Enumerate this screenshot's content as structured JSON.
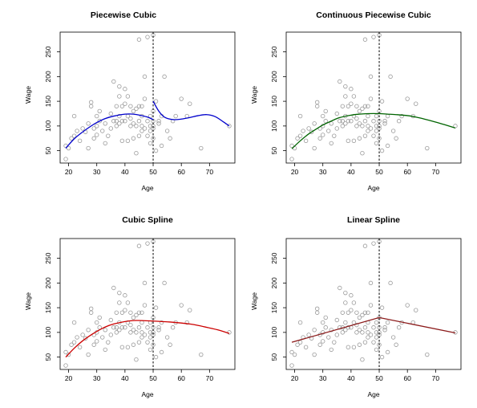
{
  "chart_data": [
    {
      "type": "scatter",
      "title": "Piecewise Cubic",
      "xlabel": "Age",
      "ylabel": "Wage",
      "xlim": [
        17,
        79
      ],
      "ylim": [
        25,
        290
      ],
      "xticks": [
        20,
        30,
        40,
        50,
        60,
        70
      ],
      "yticks": [
        50,
        100,
        150,
        200,
        250
      ],
      "knot": 50,
      "fit": {
        "color": "#0000cc",
        "segments": [
          {
            "x": [
              19,
              22,
              25,
              28,
              30,
              33,
              36,
              40,
              43,
              46,
              48,
              50
            ],
            "y": [
              55,
              74,
              88,
              100,
              107,
              115,
              120,
              124,
              124,
              121,
              118,
              113
            ]
          },
          {
            "x": [
              50,
              52,
              54,
              57,
              60,
              63,
              66,
              69,
              72,
              75,
              77
            ],
            "y": [
              150,
              130,
              118,
              113,
              114,
              117,
              121,
              123,
              119,
              108,
              100
            ]
          }
        ]
      }
    },
    {
      "type": "scatter",
      "title": "Continuous Piecewise Cubic",
      "xlabel": "Age",
      "ylabel": "Wage",
      "xlim": [
        17,
        79
      ],
      "ylim": [
        25,
        290
      ],
      "xticks": [
        20,
        30,
        40,
        50,
        60,
        70
      ],
      "yticks": [
        50,
        100,
        150,
        200,
        250
      ],
      "knot": 50,
      "fit": {
        "color": "#006400",
        "segments": [
          {
            "x": [
              19,
              22,
              25,
              28,
              30,
              33,
              36,
              40,
              43,
              46,
              50,
              53,
              56,
              60,
              63,
              66,
              70,
              73,
              77
            ],
            "y": [
              54,
              70,
              84,
              95,
              102,
              110,
              117,
              122,
              124,
              125,
              125,
              124,
              123,
              121,
              118,
              114,
              108,
              103,
              96
            ]
          }
        ]
      }
    },
    {
      "type": "scatter",
      "title": "Cubic Spline",
      "xlabel": "Age",
      "ylabel": "Wage",
      "xlim": [
        17,
        79
      ],
      "ylim": [
        25,
        290
      ],
      "xticks": [
        20,
        30,
        40,
        50,
        60,
        70
      ],
      "yticks": [
        50,
        100,
        150,
        200,
        250
      ],
      "knot": 50,
      "fit": {
        "color": "#cc0000",
        "segments": [
          {
            "x": [
              19,
              22,
              25,
              28,
              30,
              33,
              36,
              40,
              43,
              46,
              50,
              53,
              56,
              60,
              63,
              66,
              70,
              73,
              77
            ],
            "y": [
              50,
              68,
              83,
              95,
              102,
              111,
              117,
              122,
              124,
              124,
              123,
              122,
              121,
              119,
              117,
              114,
              109,
              105,
              98
            ]
          }
        ]
      }
    },
    {
      "type": "scatter",
      "title": "Linear Spline",
      "xlabel": "Age",
      "ylabel": "Wage",
      "xlim": [
        17,
        79
      ],
      "ylim": [
        25,
        290
      ],
      "xticks": [
        20,
        30,
        40,
        50,
        60,
        70
      ],
      "yticks": [
        50,
        100,
        150,
        200,
        250
      ],
      "knot": 50,
      "fit": {
        "color": "#8b1a1a",
        "segments": [
          {
            "x": [
              19,
              50,
              77
            ],
            "y": [
              80,
              130,
              99
            ]
          }
        ]
      }
    }
  ],
  "points": {
    "x": [
      19,
      19,
      20,
      21,
      22,
      22,
      23,
      24,
      25,
      26,
      27,
      27,
      28,
      28,
      29,
      29,
      30,
      30,
      30,
      31,
      31,
      32,
      33,
      33,
      34,
      35,
      35,
      36,
      36,
      37,
      37,
      37,
      38,
      38,
      38,
      38,
      39,
      39,
      39,
      40,
      40,
      40,
      41,
      41,
      41,
      42,
      42,
      42,
      43,
      43,
      43,
      44,
      44,
      44,
      45,
      45,
      45,
      45,
      46,
      46,
      46,
      46,
      47,
      47,
      47,
      48,
      48,
      48,
      49,
      49,
      49,
      49,
      50,
      50,
      50,
      50,
      50,
      50,
      51,
      51,
      52,
      52,
      53,
      53,
      54,
      55,
      56,
      57,
      58,
      60,
      62,
      63,
      67,
      77
    ],
    "y": [
      33,
      60,
      55,
      75,
      80,
      120,
      90,
      70,
      95,
      88,
      55,
      105,
      140,
      148,
      75,
      95,
      82,
      100,
      120,
      110,
      130,
      90,
      65,
      105,
      80,
      95,
      125,
      190,
      110,
      100,
      140,
      110,
      180,
      160,
      120,
      105,
      70,
      110,
      140,
      175,
      145,
      110,
      70,
      160,
      120,
      140,
      100,
      115,
      75,
      130,
      105,
      100,
      45,
      135,
      275,
      140,
      110,
      80,
      100,
      90,
      140,
      120,
      155,
      95,
      200,
      280,
      110,
      80,
      65,
      100,
      120,
      90,
      284,
      130,
      100,
      75,
      95,
      110,
      150,
      50,
      110,
      105,
      60,
      120,
      200,
      90,
      75,
      110,
      120,
      155,
      120,
      145,
      55,
      100
    ]
  }
}
